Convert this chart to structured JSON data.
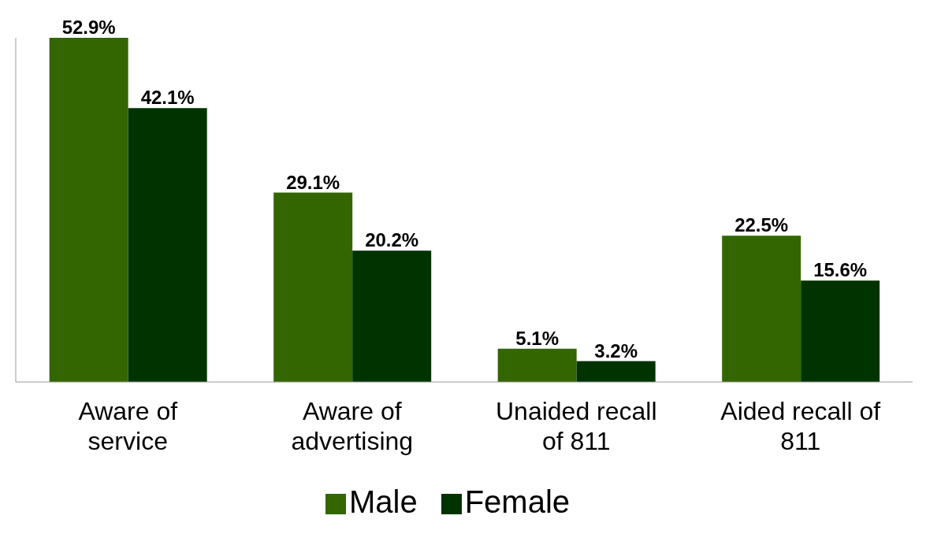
{
  "chart_data": {
    "type": "bar",
    "categories": [
      "Aware of service",
      "Aware of advertising",
      "Unaided recall of 811",
      "Aided recall of 811"
    ],
    "series": [
      {
        "name": "Male",
        "color": "#336600",
        "values": [
          52.9,
          29.1,
          5.1,
          22.5
        ],
        "value_labels": [
          "52.9%",
          "29.1%",
          "5.1%",
          "22.5%"
        ]
      },
      {
        "name": "Female",
        "color": "#003300",
        "values": [
          42.1,
          20.2,
          3.2,
          15.6
        ],
        "value_labels": [
          "42.1%",
          "20.2%",
          "3.2%",
          "15.6%"
        ]
      }
    ],
    "grid": false,
    "legend": "bottom"
  }
}
